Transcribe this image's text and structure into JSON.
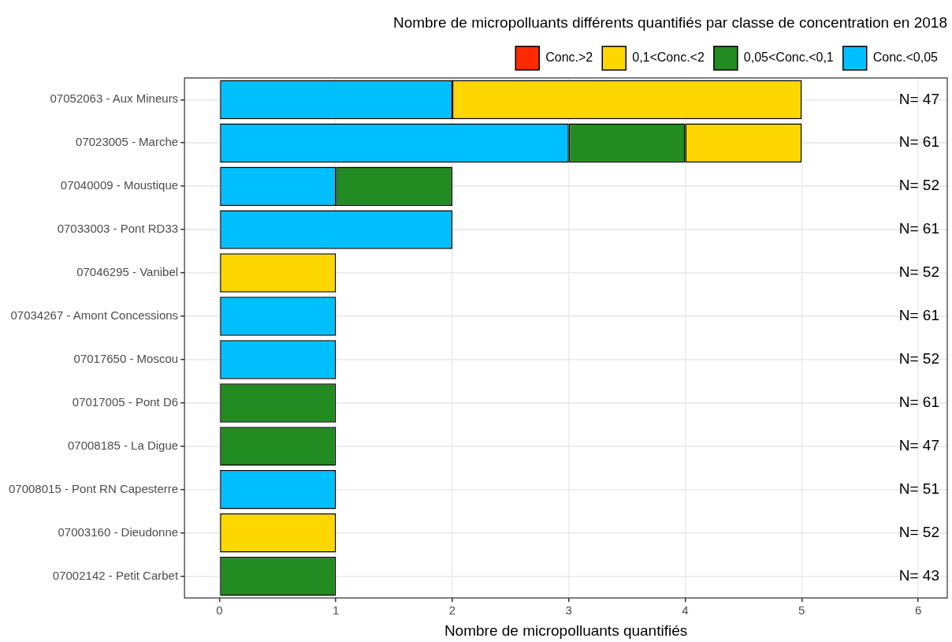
{
  "chart_data": {
    "type": "bar",
    "orientation": "horizontal",
    "stacked": true,
    "title": "Nombre de micropolluants différents quantifiés par classe de concentration en 2018",
    "xlabel": "Nombre de micropolluants quantifiés",
    "categories": [
      "07052063 - Aux Mineurs",
      "07023005 - Marche",
      "07040009 - Moustique",
      "07033003 - Pont RD33",
      "07046295 - Vanibel",
      "07034267 - Amont Concessions",
      "07017650 - Moscou",
      "07017005 - Pont D6",
      "07008185 - La Digue",
      "07008015 - Pont RN Capesterre",
      "07003160 - Dieudonne",
      "07002142 - Petit Carbet"
    ],
    "series": [
      {
        "name": "Conc.<0,05",
        "color": "#00bfff",
        "values": [
          2,
          3,
          1,
          2,
          0,
          1,
          1,
          0,
          0,
          1,
          0,
          0
        ]
      },
      {
        "name": "0,05<Conc.<0,1",
        "color": "#228b22",
        "values": [
          0,
          1,
          1,
          0,
          0,
          0,
          0,
          1,
          1,
          0,
          0,
          1
        ]
      },
      {
        "name": "0,1<Conc.<2",
        "color": "#ffd700",
        "values": [
          3,
          1,
          0,
          0,
          1,
          0,
          0,
          0,
          0,
          0,
          1,
          0
        ]
      },
      {
        "name": "Conc.>2",
        "color": "#ff2a00",
        "values": [
          0,
          0,
          0,
          0,
          0,
          0,
          0,
          0,
          0,
          0,
          0,
          0
        ]
      }
    ],
    "xlim": [
      -0.3,
      6.25
    ],
    "xticks": [
      0,
      1,
      2,
      3,
      4,
      5,
      6
    ],
    "grid": true,
    "legend": "top",
    "annotations": [
      "N= 47",
      "N= 61",
      "N= 52",
      "N= 61",
      "N= 52",
      "N= 61",
      "N= 52",
      "N= 61",
      "N= 47",
      "N= 51",
      "N= 52",
      "N= 43"
    ]
  }
}
